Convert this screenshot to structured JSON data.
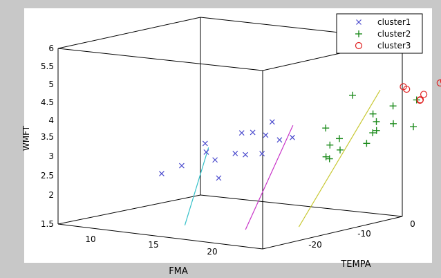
{
  "chart_data": {
    "type": "scatter",
    "title": "",
    "xlabel": "FMA",
    "ylabel": "TEMPA",
    "zlabel": "WMFT",
    "x_ticks": [
      "10",
      "15",
      "20"
    ],
    "y_ticks": [
      "-20",
      "-10",
      "0"
    ],
    "z_ticks": [
      "1.5",
      "2",
      "2.5",
      "3",
      "3.5",
      "4",
      "4.5",
      "5",
      "5.5",
      "6"
    ],
    "legend_position": "top-right",
    "series": [
      {
        "name": "cluster1",
        "marker": "x",
        "color": "#4a4acd",
        "points": [
          [
            11.5,
            -20,
            2.5
          ],
          [
            12.5,
            -18,
            2.7
          ],
          [
            13.5,
            -14,
            2.8
          ],
          [
            14,
            -16,
            3.3
          ],
          [
            14.5,
            -11,
            3.5
          ],
          [
            15.5,
            -13,
            3.0
          ],
          [
            16,
            -16,
            2.4
          ],
          [
            17,
            -13,
            3.0
          ],
          [
            17.5,
            -11,
            3.0
          ],
          [
            19,
            -11,
            3.9
          ],
          [
            20,
            -13,
            3.6
          ],
          [
            22,
            -17,
            3.8
          ],
          [
            22,
            -24,
            3.4
          ],
          [
            21,
            -10,
            3.5
          ],
          [
            24,
            -15,
            3.6
          ]
        ]
      },
      {
        "name": "cluster2",
        "marker": "+",
        "color": "#1e8c1e",
        "points": [
          [
            22,
            -6,
            3.7
          ],
          [
            24,
            -8,
            3.0
          ],
          [
            25,
            -7,
            3.5
          ],
          [
            25.5,
            -9,
            3.0
          ],
          [
            26,
            -3,
            3.6
          ],
          [
            24,
            -4,
            4.6
          ],
          [
            28,
            -5,
            4.2
          ],
          [
            28.5,
            -12,
            3.5
          ],
          [
            28.5,
            -5,
            4.0
          ],
          [
            29,
            -3,
            4.4
          ],
          [
            29.5,
            -6,
            3.8
          ],
          [
            30,
            -12,
            3.4
          ],
          [
            30,
            -8,
            3.5
          ],
          [
            31,
            -5,
            4.0
          ],
          [
            31.5,
            -2,
            4.6
          ],
          [
            32,
            -3,
            3.9
          ]
        ]
      },
      {
        "name": "cluster3",
        "marker": "o",
        "color": "#e02020",
        "points": [
          [
            31,
            -3,
            4.9
          ],
          [
            31.5,
            -4,
            5.0
          ],
          [
            32,
            -2,
            4.6
          ],
          [
            34,
            -1,
            5.1
          ],
          [
            34,
            -4,
            4.7
          ],
          [
            35.5,
            -2,
            5.2
          ],
          [
            35.5,
            -5,
            4.9
          ]
        ]
      }
    ],
    "lines": [
      {
        "color": "#33c0c8",
        "points": [
          [
            11,
            -16,
            1
          ],
          [
            14.5,
            -16,
            3.2
          ]
        ]
      },
      {
        "color": "#c833c8",
        "points": [
          [
            18,
            -14,
            1
          ],
          [
            25,
            -14,
            4
          ]
        ]
      },
      {
        "color": "#c8c833",
        "points": [
          [
            20,
            -8,
            1
          ],
          [
            32,
            -8,
            5
          ]
        ]
      }
    ]
  }
}
